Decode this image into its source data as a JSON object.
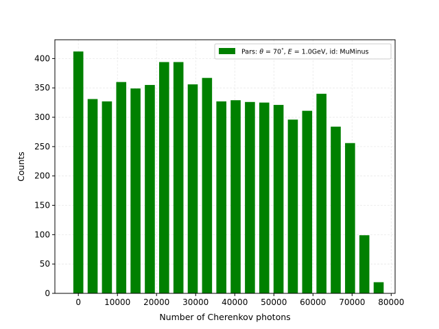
{
  "chart_data": {
    "type": "bar",
    "xlabel": "Number of Cherenkov photons",
    "ylabel": "Counts",
    "xlim": [
      -6000,
      81000
    ],
    "ylim": [
      0,
      432
    ],
    "xticks": [
      0,
      10000,
      20000,
      30000,
      40000,
      50000,
      60000,
      70000,
      80000
    ],
    "xtick_labels": [
      "0",
      "10000",
      "20000",
      "30000",
      "40000",
      "50000",
      "60000",
      "70000",
      "80000"
    ],
    "yticks": [
      0,
      50,
      100,
      150,
      200,
      250,
      300,
      350,
      400
    ],
    "ytick_labels": [
      "0",
      "50",
      "100",
      "150",
      "200",
      "250",
      "300",
      "350",
      "400"
    ],
    "grid": true,
    "legend_position": "top-right",
    "bar_color": "#008000",
    "series": [
      {
        "name": "Pars: θ = 70°, E = 1.0GeV, id: MuMinus",
        "legend": {
          "prefix": "Pars: ",
          "theta_symbol": "θ",
          "theta_value": " = 70",
          "degree": "°",
          "sep": ", ",
          "energy_symbol": "E",
          "energy_value": " = 1.0GeV, id: MuMinus"
        },
        "x": [
          0,
          3657,
          7314,
          10971,
          14628,
          18285,
          21942,
          25599,
          29256,
          32913,
          36570,
          40227,
          43884,
          47541,
          51198,
          54855,
          58512,
          62169,
          65826,
          69483,
          73140,
          76797
        ],
        "values": [
          412,
          331,
          327,
          360,
          349,
          355,
          394,
          394,
          356,
          367,
          327,
          329,
          326,
          325,
          321,
          296,
          311,
          340,
          284,
          256,
          99,
          19
        ]
      }
    ]
  }
}
